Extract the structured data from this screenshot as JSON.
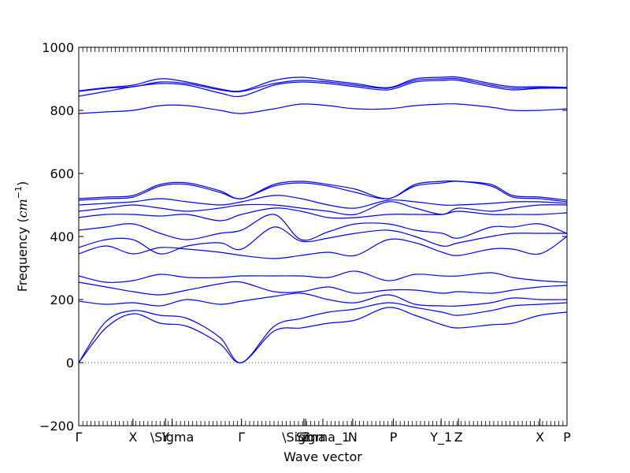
{
  "chart_data": {
    "type": "line",
    "title": "",
    "xlabel": "Wave vector",
    "ylabel_prefix": "Frequency (",
    "ylabel_unit_base": "cm",
    "ylabel_unit_exp": "−1",
    "ylabel_suffix": ")",
    "ylim": [
      -200,
      1000
    ],
    "xlim": [
      0,
      9
    ],
    "yticks": [
      -200,
      0,
      200,
      400,
      600,
      800,
      1000
    ],
    "ytick_labels": [
      "−200",
      "0",
      "200",
      "400",
      "600",
      "800",
      "1000"
    ],
    "xticks": [
      {
        "pos": 0.0,
        "label": "Γ"
      },
      {
        "pos": 1.0,
        "label": "X"
      },
      {
        "pos": 1.6,
        "label": "Y"
      },
      {
        "pos": 1.72,
        "label": "\\Sigma"
      },
      {
        "pos": 3.0,
        "label": "Γ"
      },
      {
        "pos": 4.15,
        "label": "\\Sigma"
      },
      {
        "pos": 4.18,
        "label": "Z"
      },
      {
        "pos": 4.5,
        "label": "Sigma_1"
      },
      {
        "pos": 5.05,
        "label": "N"
      },
      {
        "pos": 5.8,
        "label": "P"
      },
      {
        "pos": 6.68,
        "label": "Y_1"
      },
      {
        "pos": 7.0,
        "label": "Z"
      },
      {
        "pos": 8.5,
        "label": "X"
      },
      {
        "pos": 9.0,
        "label": "P"
      }
    ],
    "series_color": "#0000ff",
    "zero_line_color": "#555555",
    "grid": false,
    "bands": [
      {
        "x": [
          0,
          0.5,
          1.0,
          1.5,
          2.0,
          2.6,
          3.0,
          3.6,
          4.1,
          4.6,
          5.1,
          5.7,
          6.2,
          6.7,
          7.0,
          7.6,
          8.0,
          8.5,
          9.0
        ],
        "y": [
          0,
          110,
          155,
          125,
          115,
          60,
          0,
          100,
          110,
          125,
          135,
          175,
          150,
          120,
          110,
          120,
          125,
          150,
          160
        ]
      },
      {
        "x": [
          0,
          0.5,
          1.0,
          1.5,
          2.0,
          2.6,
          3.0,
          3.6,
          4.1,
          4.6,
          5.1,
          5.7,
          6.2,
          6.7,
          7.0,
          7.6,
          8.0,
          8.5,
          9.0
        ],
        "y": [
          0,
          130,
          165,
          150,
          140,
          80,
          0,
          115,
          140,
          160,
          170,
          190,
          175,
          160,
          150,
          165,
          180,
          185,
          190
        ]
      },
      {
        "x": [
          0,
          0.5,
          1.0,
          1.5,
          2.0,
          2.6,
          3.0,
          3.6,
          4.1,
          4.6,
          5.1,
          5.7,
          6.2,
          6.7,
          7.0,
          7.6,
          8.0,
          8.5,
          9.0
        ],
        "y": [
          195,
          185,
          190,
          180,
          200,
          185,
          195,
          210,
          220,
          200,
          190,
          215,
          185,
          180,
          180,
          190,
          205,
          200,
          200
        ]
      },
      {
        "x": [
          0,
          0.5,
          1.0,
          1.5,
          2.0,
          2.6,
          3.0,
          3.6,
          4.1,
          4.6,
          5.1,
          5.7,
          6.2,
          6.7,
          7.0,
          7.6,
          8.0,
          8.5,
          9.0
        ],
        "y": [
          255,
          240,
          225,
          215,
          230,
          250,
          255,
          225,
          225,
          240,
          220,
          230,
          230,
          220,
          225,
          220,
          230,
          240,
          245
        ]
      },
      {
        "x": [
          0,
          0.5,
          1.0,
          1.5,
          2.0,
          2.6,
          3.0,
          3.6,
          4.1,
          4.6,
          5.1,
          5.7,
          6.2,
          6.7,
          7.0,
          7.6,
          8.0,
          8.5,
          9.0
        ],
        "y": [
          275,
          255,
          260,
          280,
          270,
          270,
          275,
          275,
          275,
          270,
          290,
          260,
          280,
          275,
          275,
          285,
          270,
          260,
          255
        ]
      },
      {
        "x": [
          0,
          0.5,
          1.0,
          1.5,
          2.0,
          2.6,
          3.0,
          3.6,
          4.1,
          4.6,
          5.1,
          5.7,
          6.2,
          6.7,
          7.0,
          7.6,
          8.0,
          8.5,
          9.0
        ],
        "y": [
          345,
          370,
          345,
          365,
          360,
          350,
          340,
          330,
          340,
          350,
          340,
          390,
          380,
          350,
          340,
          360,
          360,
          345,
          400
        ]
      },
      {
        "x": [
          0,
          0.5,
          1.0,
          1.5,
          2.0,
          2.6,
          3.0,
          3.6,
          4.1,
          4.6,
          5.1,
          5.7,
          6.2,
          6.7,
          7.0,
          7.6,
          8.0,
          8.5,
          9.0
        ],
        "y": [
          365,
          390,
          390,
          345,
          370,
          380,
          360,
          430,
          385,
          395,
          410,
          420,
          400,
          370,
          380,
          400,
          410,
          410,
          410
        ]
      },
      {
        "x": [
          0,
          0.5,
          1.0,
          1.5,
          2.0,
          2.6,
          3.0,
          3.6,
          4.1,
          4.6,
          5.1,
          5.7,
          6.2,
          6.7,
          7.0,
          7.6,
          8.0,
          8.5,
          9.0
        ],
        "y": [
          420,
          430,
          440,
          410,
          390,
          410,
          420,
          470,
          390,
          415,
          440,
          440,
          420,
          410,
          395,
          430,
          430,
          440,
          410
        ]
      },
      {
        "x": [
          0,
          0.5,
          1.0,
          1.5,
          2.0,
          2.6,
          3.0,
          3.6,
          4.1,
          4.6,
          5.1,
          5.7,
          6.2,
          6.7,
          7.0,
          7.6,
          8.0,
          8.5,
          9.0
        ],
        "y": [
          460,
          470,
          470,
          465,
          470,
          450,
          470,
          490,
          480,
          460,
          460,
          470,
          470,
          470,
          480,
          470,
          470,
          470,
          475
        ]
      },
      {
        "x": [
          0,
          0.5,
          1.0,
          1.5,
          2.0,
          2.6,
          3.0,
          3.6,
          4.1,
          4.6,
          5.1,
          5.7,
          6.2,
          6.7,
          7.0,
          7.6,
          8.0,
          8.5,
          9.0
        ],
        "y": [
          480,
          490,
          500,
          490,
          480,
          490,
          500,
          500,
          490,
          480,
          470,
          510,
          490,
          470,
          490,
          480,
          490,
          500,
          500
        ]
      },
      {
        "x": [
          0,
          0.5,
          1.0,
          1.5,
          2.0,
          2.6,
          3.0,
          3.6,
          4.1,
          4.6,
          5.1,
          5.7,
          6.2,
          6.7,
          7.0,
          7.6,
          8.0,
          8.5,
          9.0
        ],
        "y": [
          500,
          505,
          510,
          520,
          510,
          500,
          510,
          530,
          520,
          500,
          490,
          515,
          510,
          500,
          500,
          505,
          510,
          510,
          505
        ]
      },
      {
        "x": [
          0,
          0.5,
          1.0,
          1.5,
          2.0,
          2.6,
          3.0,
          3.6,
          4.1,
          4.6,
          5.1,
          5.7,
          6.2,
          6.7,
          7.0,
          7.6,
          8.0,
          8.5,
          9.0
        ],
        "y": [
          515,
          520,
          525,
          560,
          565,
          540,
          520,
          560,
          570,
          560,
          540,
          520,
          560,
          570,
          575,
          560,
          525,
          520,
          510
        ]
      },
      {
        "x": [
          0,
          0.5,
          1.0,
          1.5,
          2.0,
          2.6,
          3.0,
          3.6,
          4.1,
          4.6,
          5.1,
          5.7,
          6.2,
          6.7,
          7.0,
          7.6,
          8.0,
          8.5,
          9.0
        ],
        "y": [
          520,
          525,
          530,
          565,
          570,
          545,
          520,
          565,
          575,
          565,
          550,
          520,
          565,
          575,
          575,
          565,
          530,
          525,
          515
        ]
      },
      {
        "x": [
          0,
          0.5,
          1.0,
          1.5,
          2.0,
          2.6,
          3.0,
          3.6,
          4.1,
          4.6,
          5.1,
          5.7,
          6.2,
          6.7,
          7.0,
          7.6,
          8.0,
          8.5,
          9.0
        ],
        "y": [
          790,
          795,
          800,
          815,
          815,
          800,
          790,
          805,
          820,
          815,
          805,
          805,
          815,
          820,
          820,
          810,
          800,
          800,
          805
        ]
      },
      {
        "x": [
          0,
          0.5,
          1.0,
          1.5,
          2.0,
          2.6,
          3.0,
          3.6,
          4.1,
          4.6,
          5.1,
          5.7,
          6.2,
          6.7,
          7.0,
          7.6,
          8.0,
          8.5,
          9.0
        ],
        "y": [
          845,
          860,
          875,
          885,
          880,
          855,
          845,
          880,
          890,
          885,
          875,
          865,
          890,
          895,
          895,
          875,
          865,
          870,
          870
        ]
      },
      {
        "x": [
          0,
          0.5,
          1.0,
          1.5,
          2.0,
          2.6,
          3.0,
          3.6,
          4.1,
          4.6,
          5.1,
          5.7,
          6.2,
          6.7,
          7.0,
          7.6,
          8.0,
          8.5,
          9.0
        ],
        "y": [
          860,
          870,
          875,
          890,
          885,
          865,
          860,
          885,
          895,
          890,
          880,
          870,
          895,
          900,
          900,
          880,
          870,
          872,
          872
        ]
      },
      {
        "x": [
          0,
          0.5,
          1.0,
          1.5,
          2.0,
          2.6,
          3.0,
          3.6,
          4.1,
          4.6,
          5.1,
          5.7,
          6.2,
          6.7,
          7.0,
          7.6,
          8.0,
          8.5,
          9.0
        ],
        "y": [
          862,
          872,
          880,
          900,
          890,
          868,
          862,
          895,
          905,
          895,
          885,
          872,
          900,
          905,
          905,
          885,
          875,
          875,
          873
        ]
      }
    ]
  }
}
